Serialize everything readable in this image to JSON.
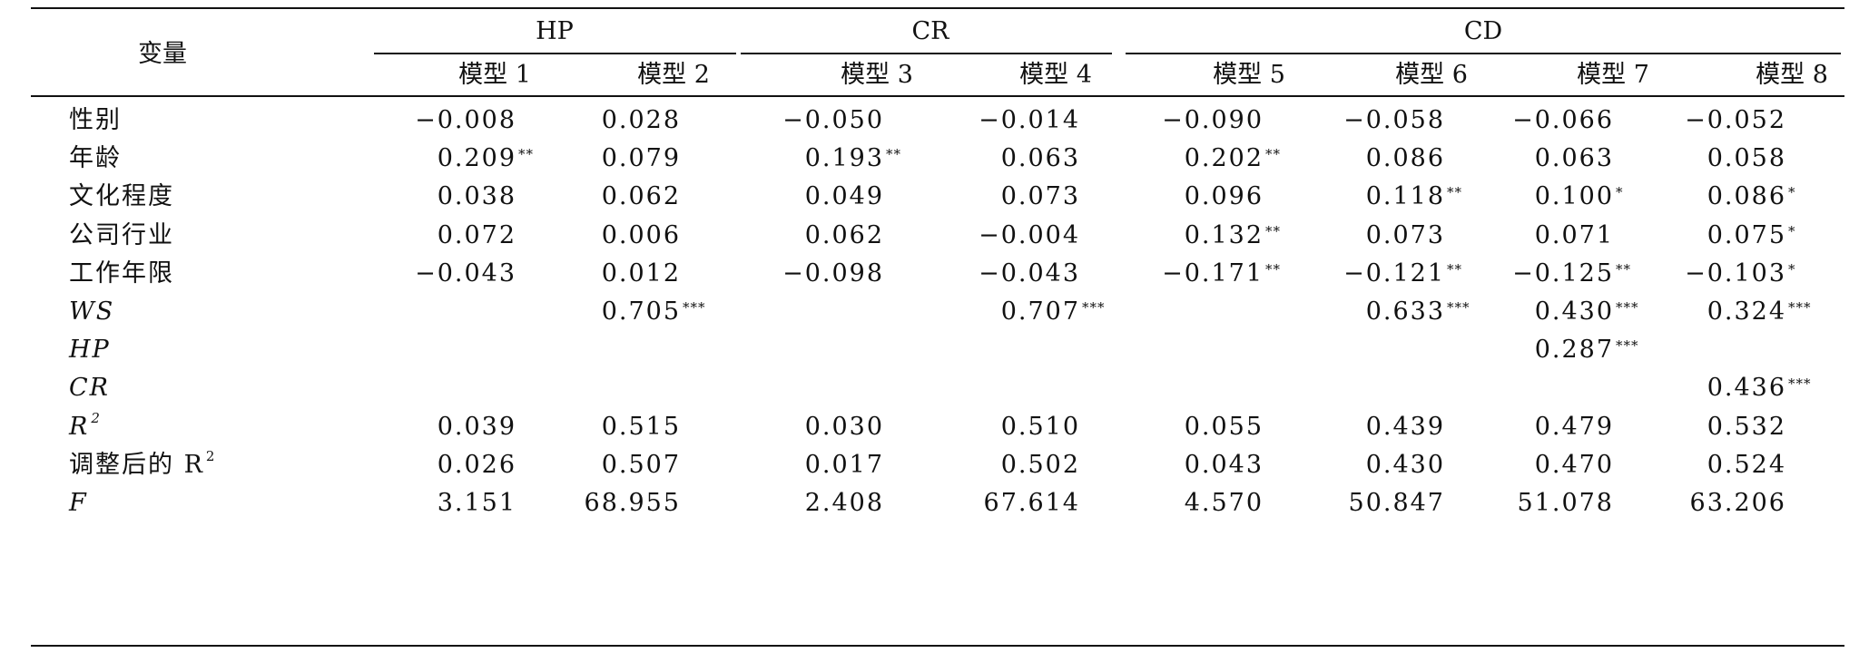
{
  "table": {
    "stub_header": "变量",
    "groups": [
      {
        "label": "HP"
      },
      {
        "label": "CR"
      },
      {
        "label": "CD"
      }
    ],
    "models": [
      "模型 1",
      "模型 2",
      "模型 3",
      "模型 4",
      "模型 5",
      "模型 6",
      "模型 7",
      "模型 8"
    ],
    "rows": [
      {
        "label": "性别",
        "label_sup": "",
        "italic": false,
        "cells": [
          {
            "value": "−0.008",
            "sig": ""
          },
          {
            "value": "0.028",
            "sig": ""
          },
          {
            "value": "−0.050",
            "sig": ""
          },
          {
            "value": "−0.014",
            "sig": ""
          },
          {
            "value": "−0.090",
            "sig": ""
          },
          {
            "value": "−0.058",
            "sig": ""
          },
          {
            "value": "−0.066",
            "sig": ""
          },
          {
            "value": "−0.052",
            "sig": ""
          }
        ]
      },
      {
        "label": "年龄",
        "label_sup": "",
        "italic": false,
        "cells": [
          {
            "value": "0.209",
            "sig": "**"
          },
          {
            "value": "0.079",
            "sig": ""
          },
          {
            "value": "0.193",
            "sig": "**"
          },
          {
            "value": "0.063",
            "sig": ""
          },
          {
            "value": "0.202",
            "sig": "**"
          },
          {
            "value": "0.086",
            "sig": ""
          },
          {
            "value": "0.063",
            "sig": ""
          },
          {
            "value": "0.058",
            "sig": ""
          }
        ]
      },
      {
        "label": "文化程度",
        "label_sup": "",
        "italic": false,
        "cells": [
          {
            "value": "0.038",
            "sig": ""
          },
          {
            "value": "0.062",
            "sig": ""
          },
          {
            "value": "0.049",
            "sig": ""
          },
          {
            "value": "0.073",
            "sig": ""
          },
          {
            "value": "0.096",
            "sig": ""
          },
          {
            "value": "0.118",
            "sig": "**"
          },
          {
            "value": "0.100",
            "sig": "*"
          },
          {
            "value": "0.086",
            "sig": "*"
          }
        ]
      },
      {
        "label": "公司行业",
        "label_sup": "",
        "italic": false,
        "cells": [
          {
            "value": "0.072",
            "sig": ""
          },
          {
            "value": "0.006",
            "sig": ""
          },
          {
            "value": "0.062",
            "sig": ""
          },
          {
            "value": "−0.004",
            "sig": ""
          },
          {
            "value": "0.132",
            "sig": "**"
          },
          {
            "value": "0.073",
            "sig": ""
          },
          {
            "value": "0.071",
            "sig": ""
          },
          {
            "value": "0.075",
            "sig": "*"
          }
        ]
      },
      {
        "label": "工作年限",
        "label_sup": "",
        "italic": false,
        "cells": [
          {
            "value": "−0.043",
            "sig": ""
          },
          {
            "value": "0.012",
            "sig": ""
          },
          {
            "value": "−0.098",
            "sig": ""
          },
          {
            "value": "−0.043",
            "sig": ""
          },
          {
            "value": "−0.171",
            "sig": "**"
          },
          {
            "value": "−0.121",
            "sig": "**"
          },
          {
            "value": "−0.125",
            "sig": "**"
          },
          {
            "value": "−0.103",
            "sig": "*"
          }
        ]
      },
      {
        "label": "WS",
        "label_sup": "",
        "italic": true,
        "cells": [
          {
            "value": "",
            "sig": ""
          },
          {
            "value": "0.705",
            "sig": "***"
          },
          {
            "value": "",
            "sig": ""
          },
          {
            "value": "0.707",
            "sig": "***"
          },
          {
            "value": "",
            "sig": ""
          },
          {
            "value": "0.633",
            "sig": "***"
          },
          {
            "value": "0.430",
            "sig": "***"
          },
          {
            "value": "0.324",
            "sig": "***"
          }
        ]
      },
      {
        "label": "HP",
        "label_sup": "",
        "italic": true,
        "cells": [
          {
            "value": "",
            "sig": ""
          },
          {
            "value": "",
            "sig": ""
          },
          {
            "value": "",
            "sig": ""
          },
          {
            "value": "",
            "sig": ""
          },
          {
            "value": "",
            "sig": ""
          },
          {
            "value": "",
            "sig": ""
          },
          {
            "value": "0.287",
            "sig": "***"
          },
          {
            "value": "",
            "sig": ""
          }
        ]
      },
      {
        "label": "CR",
        "label_sup": "",
        "italic": true,
        "cells": [
          {
            "value": "",
            "sig": ""
          },
          {
            "value": "",
            "sig": ""
          },
          {
            "value": "",
            "sig": ""
          },
          {
            "value": "",
            "sig": ""
          },
          {
            "value": "",
            "sig": ""
          },
          {
            "value": "",
            "sig": ""
          },
          {
            "value": "",
            "sig": ""
          },
          {
            "value": "0.436",
            "sig": "***"
          }
        ]
      },
      {
        "label": "R",
        "label_sup": "2",
        "italic": true,
        "cells": [
          {
            "value": "0.039",
            "sig": ""
          },
          {
            "value": "0.515",
            "sig": ""
          },
          {
            "value": "0.030",
            "sig": ""
          },
          {
            "value": "0.510",
            "sig": ""
          },
          {
            "value": "0.055",
            "sig": ""
          },
          {
            "value": "0.439",
            "sig": ""
          },
          {
            "value": "0.479",
            "sig": ""
          },
          {
            "value": "0.532",
            "sig": ""
          }
        ]
      },
      {
        "label": "调整后的 R",
        "label_sup": "2",
        "italic": false,
        "cells": [
          {
            "value": "0.026",
            "sig": ""
          },
          {
            "value": "0.507",
            "sig": ""
          },
          {
            "value": "0.017",
            "sig": ""
          },
          {
            "value": "0.502",
            "sig": ""
          },
          {
            "value": "0.043",
            "sig": ""
          },
          {
            "value": "0.430",
            "sig": ""
          },
          {
            "value": "0.470",
            "sig": ""
          },
          {
            "value": "0.524",
            "sig": ""
          }
        ]
      },
      {
        "label": "F",
        "label_sup": "",
        "italic": true,
        "cells": [
          {
            "value": "3.151",
            "sig": ""
          },
          {
            "value": "68.955",
            "sig": ""
          },
          {
            "value": "2.408",
            "sig": ""
          },
          {
            "value": "67.614",
            "sig": ""
          },
          {
            "value": "4.570",
            "sig": ""
          },
          {
            "value": "50.847",
            "sig": ""
          },
          {
            "value": "51.078",
            "sig": ""
          },
          {
            "value": "63.206",
            "sig": ""
          }
        ]
      }
    ]
  }
}
